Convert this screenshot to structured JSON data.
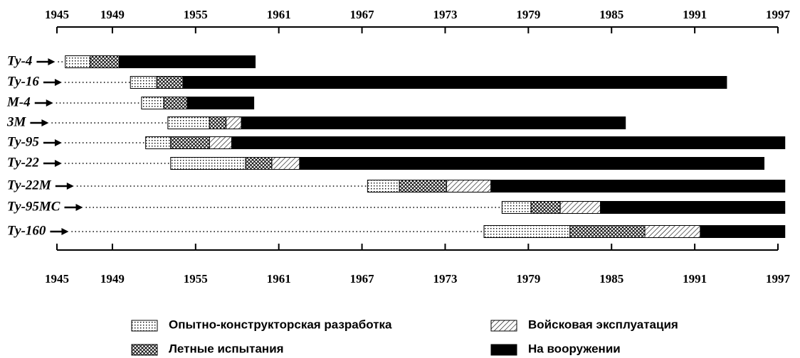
{
  "chart_data": {
    "type": "gantt",
    "categories": [
      "Ту-4",
      "Ту-16",
      "М-4",
      "3М",
      "Ту-95",
      "Ту-22",
      "Ту-22М",
      "Ту-95МС",
      "Ту-160"
    ],
    "series": [
      {
        "name": "Опытно-конструкторская разработка",
        "pattern": "dots",
        "values": [
          1945.6,
          1950.3,
          1951.1,
          1953.0,
          1951.4,
          1953.2,
          1967.4,
          1977.1,
          1975.8
        ]
      },
      {
        "name": "Летные испытания",
        "pattern": "crosshatch",
        "values": [
          1947.4,
          1952.2,
          1952.7,
          1956.0,
          1953.2,
          1958.6,
          1969.7,
          1979.2,
          1982.0
        ]
      },
      {
        "name": "Войсковая эксплуатация",
        "pattern": "hatch",
        "values": [
          null,
          null,
          null,
          1957.2,
          1956.0,
          1960.5,
          1973.1,
          1981.3,
          1987.4
        ]
      },
      {
        "name": "На вооружении",
        "pattern": "solid",
        "values": [
          1949.5,
          1954.1,
          1954.4,
          1958.3,
          1957.6,
          1962.5,
          1976.3,
          1984.2,
          1991.4
        ]
      }
    ],
    "end": [
      1959.3,
      1993.3,
      1959.2,
      1986.0,
      1997.5,
      1996.0,
      1997.5,
      1997.5,
      1997.5
    ],
    "xlim": [
      1945,
      1997
    ],
    "xticks": [
      1945,
      1949,
      1955,
      1961,
      1967,
      1973,
      1979,
      1985,
      1991,
      1997
    ]
  }
}
